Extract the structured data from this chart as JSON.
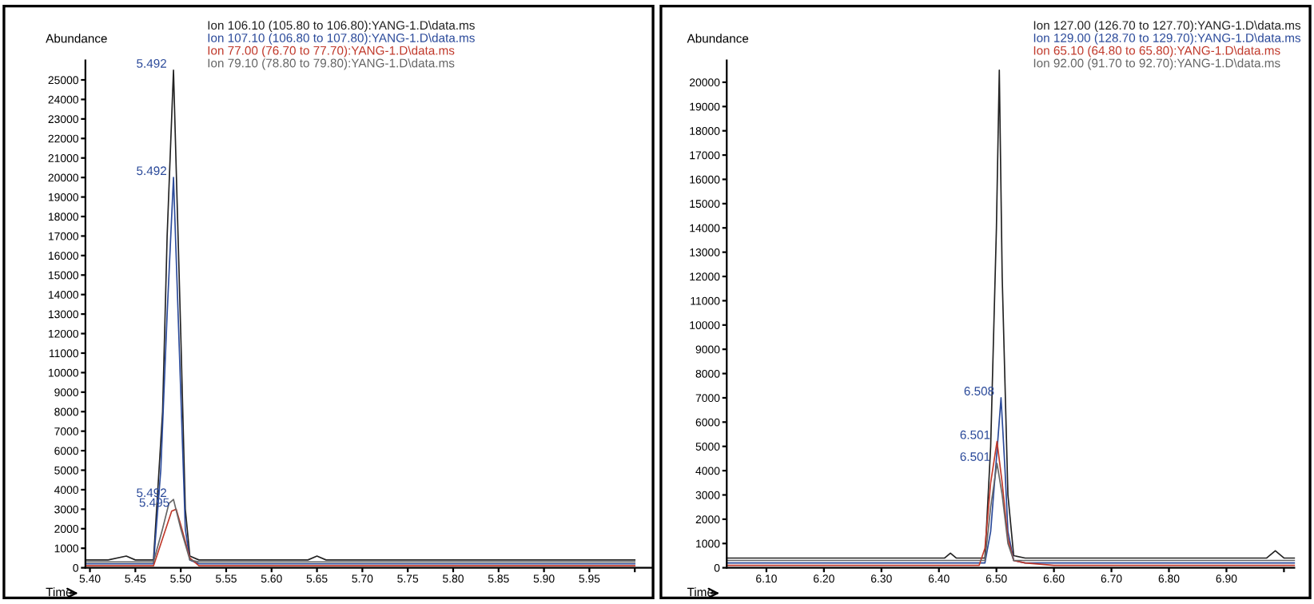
{
  "chart_data": [
    {
      "type": "line",
      "ylabel": "Abundance",
      "xlabel": "Time",
      "xlim": [
        5.395,
        6.02
      ],
      "ylim": [
        0,
        26000
      ],
      "xticks": [
        {
          "value": 5.4,
          "label": "5.40"
        },
        {
          "value": 5.45,
          "label": "5.45"
        },
        {
          "value": 5.5,
          "label": "5.50"
        },
        {
          "value": 5.55,
          "label": "5.55"
        },
        {
          "value": 5.6,
          "label": "5.60"
        },
        {
          "value": 5.65,
          "label": "5.65"
        },
        {
          "value": 5.7,
          "label": "5.70"
        },
        {
          "value": 5.75,
          "label": "5.75"
        },
        {
          "value": 5.8,
          "label": "5.80"
        },
        {
          "value": 5.85,
          "label": "5.85"
        },
        {
          "value": 5.9,
          "label": "5.90"
        },
        {
          "value": 5.95,
          "label": "5.95"
        },
        {
          "value": 6.0,
          "label": null
        }
      ],
      "yticks": [
        0,
        1000,
        2000,
        3000,
        4000,
        5000,
        6000,
        7000,
        8000,
        9000,
        10000,
        11000,
        12000,
        13000,
        14000,
        15000,
        16000,
        17000,
        18000,
        19000,
        20000,
        21000,
        22000,
        23000,
        24000,
        25000
      ],
      "legend": "top",
      "grid": false,
      "marker": "none",
      "line_style": "solid",
      "series": [
        {
          "name": "Ion 106.10 (105.80 to 106.80):YANG-1.D\\data.ms",
          "color": "#222222",
          "x": [
            5.395,
            5.42,
            5.44,
            5.45,
            5.46,
            5.47,
            5.48,
            5.485,
            5.492,
            5.5,
            5.505,
            5.51,
            5.52,
            5.55,
            5.6,
            5.64,
            5.65,
            5.66,
            5.7,
            5.8,
            5.9,
            6.0
          ],
          "values": [
            400,
            400,
            600,
            400,
            400,
            400,
            8000,
            17000,
            25500,
            12000,
            3000,
            600,
            400,
            400,
            400,
            400,
            600,
            400,
            400,
            400,
            400,
            400
          ]
        },
        {
          "name": "Ion 107.10 (106.80 to 107.80):YANG-1.D\\data.ms",
          "color": "#2b4a9a",
          "x": [
            5.395,
            5.42,
            5.44,
            5.45,
            5.46,
            5.47,
            5.478,
            5.485,
            5.492,
            5.5,
            5.505,
            5.51,
            5.52,
            5.55,
            5.6,
            5.65,
            5.7,
            5.8,
            5.85,
            5.9,
            6.0
          ],
          "values": [
            200,
            200,
            200,
            200,
            200,
            200,
            5000,
            13000,
            20000,
            9000,
            2000,
            400,
            200,
            200,
            200,
            200,
            200,
            200,
            200,
            200,
            200
          ]
        },
        {
          "name": "Ion 77.00 (76.70 to 77.70):YANG-1.D\\data.ms",
          "color": "#c0392b",
          "x": [
            5.395,
            5.44,
            5.46,
            5.47,
            5.48,
            5.49,
            5.495,
            5.5,
            5.51,
            5.52,
            5.55,
            5.6,
            5.7,
            5.8,
            5.92,
            6.0
          ],
          "values": [
            100,
            100,
            100,
            100,
            1500,
            2900,
            3000,
            2200,
            500,
            100,
            100,
            100,
            100,
            100,
            100,
            100
          ]
        },
        {
          "name": "Ion 79.10 (78.80 to 79.80):YANG-1.D\\data.ms",
          "color": "#666666",
          "x": [
            5.395,
            5.44,
            5.46,
            5.47,
            5.48,
            5.487,
            5.492,
            5.5,
            5.51,
            5.52,
            5.55,
            5.6,
            5.65,
            5.7,
            5.8,
            6.0
          ],
          "values": [
            300,
            300,
            300,
            300,
            2000,
            3300,
            3500,
            2000,
            400,
            300,
            300,
            300,
            300,
            300,
            300,
            300
          ]
        }
      ],
      "annotations": [
        {
          "text": "5.492",
          "x": 5.492,
          "y": 25500
        },
        {
          "text": "5.492",
          "x": 5.492,
          "y": 20000
        },
        {
          "text": "5.492",
          "x": 5.492,
          "y": 3500
        },
        {
          "text": "5.495",
          "x": 5.495,
          "y": 3000
        }
      ]
    },
    {
      "type": "line",
      "ylabel": "Abundance",
      "xlabel": "Time",
      "xlim": [
        6.031,
        7.018
      ],
      "ylim": [
        0,
        20900
      ],
      "xticks": [
        {
          "value": 6.1,
          "label": "6.10"
        },
        {
          "value": 6.2,
          "label": "6.20"
        },
        {
          "value": 6.3,
          "label": "6.30"
        },
        {
          "value": 6.4,
          "label": "6.40"
        },
        {
          "value": 6.5,
          "label": "6.50"
        },
        {
          "value": 6.6,
          "label": "6.60"
        },
        {
          "value": 6.7,
          "label": "6.70"
        },
        {
          "value": 6.8,
          "label": "6.80"
        },
        {
          "value": 6.9,
          "label": "6.90"
        },
        {
          "value": 7.0,
          "label": null
        }
      ],
      "yticks": [
        0,
        1000,
        2000,
        3000,
        4000,
        5000,
        6000,
        7000,
        8000,
        9000,
        10000,
        11000,
        12000,
        13000,
        14000,
        15000,
        16000,
        17000,
        18000,
        19000,
        20000
      ],
      "legend": "top",
      "grid": false,
      "marker": "none",
      "line_style": "solid",
      "series": [
        {
          "name": "Ion 127.00 (126.70 to 127.70):YANG-1.D\\data.ms",
          "color": "#222222",
          "x": [
            6.031,
            6.2,
            6.4,
            6.41,
            6.42,
            6.43,
            6.45,
            6.48,
            6.49,
            6.5,
            6.505,
            6.51,
            6.52,
            6.53,
            6.55,
            6.6,
            6.7,
            6.8,
            6.9,
            6.97,
            6.985,
            7.0,
            7.018
          ],
          "values": [
            400,
            400,
            400,
            400,
            600,
            400,
            400,
            400,
            5000,
            14000,
            20500,
            12000,
            3000,
            500,
            400,
            400,
            400,
            400,
            400,
            400,
            700,
            400,
            400
          ]
        },
        {
          "name": "Ion 129.00 (128.70 to 129.70):YANG-1.D\\data.ms",
          "color": "#2b4a9a",
          "x": [
            6.031,
            6.2,
            6.4,
            6.48,
            6.49,
            6.5,
            6.508,
            6.515,
            6.52,
            6.53,
            6.55,
            6.6,
            6.8,
            7.018
          ],
          "values": [
            200,
            200,
            200,
            200,
            1500,
            4500,
            7000,
            4000,
            1500,
            300,
            200,
            200,
            200,
            200
          ]
        },
        {
          "name": "Ion 65.10 (64.80 to 65.80):YANG-1.D\\data.ms",
          "color": "#c0392b",
          "x": [
            6.031,
            6.2,
            6.4,
            6.47,
            6.48,
            6.49,
            6.501,
            6.51,
            6.52,
            6.53,
            6.55,
            6.6,
            6.7,
            6.9,
            7.018
          ],
          "values": [
            100,
            100,
            100,
            100,
            800,
            3500,
            5200,
            3500,
            1200,
            300,
            200,
            100,
            100,
            100,
            100
          ]
        },
        {
          "name": "Ion 92.00 (91.70 to 92.70):YANG-1.D\\data.ms",
          "color": "#666666",
          "x": [
            6.031,
            6.2,
            6.28,
            6.4,
            6.48,
            6.49,
            6.501,
            6.51,
            6.52,
            6.53,
            6.55,
            6.6,
            6.8,
            7.018
          ],
          "values": [
            300,
            300,
            300,
            300,
            300,
            2500,
            4300,
            3000,
            1000,
            300,
            300,
            300,
            300,
            300
          ]
        }
      ],
      "annotations": [
        {
          "text": "6.508",
          "x": 6.508,
          "y": 7000
        },
        {
          "text": "6.501",
          "x": 6.501,
          "y": 5200
        },
        {
          "text": "6.501",
          "x": 6.501,
          "y": 4300
        }
      ]
    }
  ]
}
